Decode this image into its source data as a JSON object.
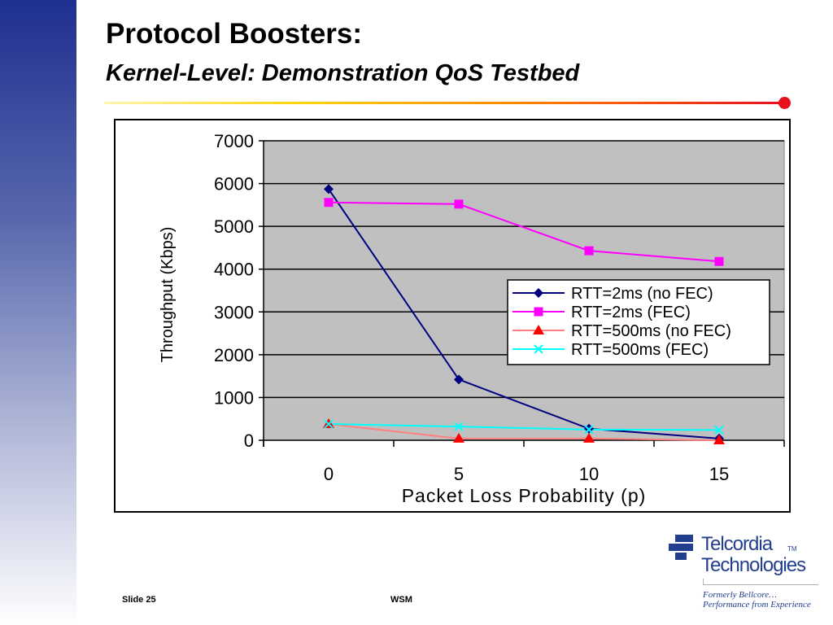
{
  "slide": {
    "title": "Protocol Boosters:",
    "subtitle": "Kernel-Level: Demonstration QoS Testbed",
    "footer_left": "Slide 25",
    "footer_center": "WSM"
  },
  "logo": {
    "name_line1": "Telcordia",
    "trademark": "TM",
    "name_line2": "Technologies",
    "tagline1": "Formerly Bellcore…",
    "tagline2": "Performance from Experience"
  },
  "colors": {
    "plot_background": "#c0c0c0",
    "logo_blue": "#223e8f"
  },
  "chart_data": {
    "type": "line",
    "title": "",
    "xlabel": "Packet Loss Probability (p)",
    "ylabel": "Throughput (Kbps)",
    "x": [
      0,
      5,
      10,
      15
    ],
    "ylim": [
      0,
      7000
    ],
    "yticks": [
      0,
      1000,
      2000,
      3000,
      4000,
      5000,
      6000,
      7000
    ],
    "grid": true,
    "legend_position": "right",
    "series": [
      {
        "name": "RTT=2ms (no FEC)",
        "values": [
          5870,
          1420,
          270,
          40
        ],
        "color": "#000080",
        "marker": "diamond"
      },
      {
        "name": "RTT=2ms (FEC)",
        "values": [
          5560,
          5520,
          4430,
          4180
        ],
        "color": "#ff00ff",
        "marker": "square"
      },
      {
        "name": "RTT=500ms (no FEC)",
        "values": [
          380,
          40,
          40,
          0
        ],
        "color": "#ff8080",
        "marker": "triangle",
        "marker_color": "#ff0000"
      },
      {
        "name": "RTT=500ms (FEC)",
        "values": [
          380,
          320,
          250,
          240
        ],
        "color": "#00ffff",
        "marker": "x"
      }
    ]
  }
}
